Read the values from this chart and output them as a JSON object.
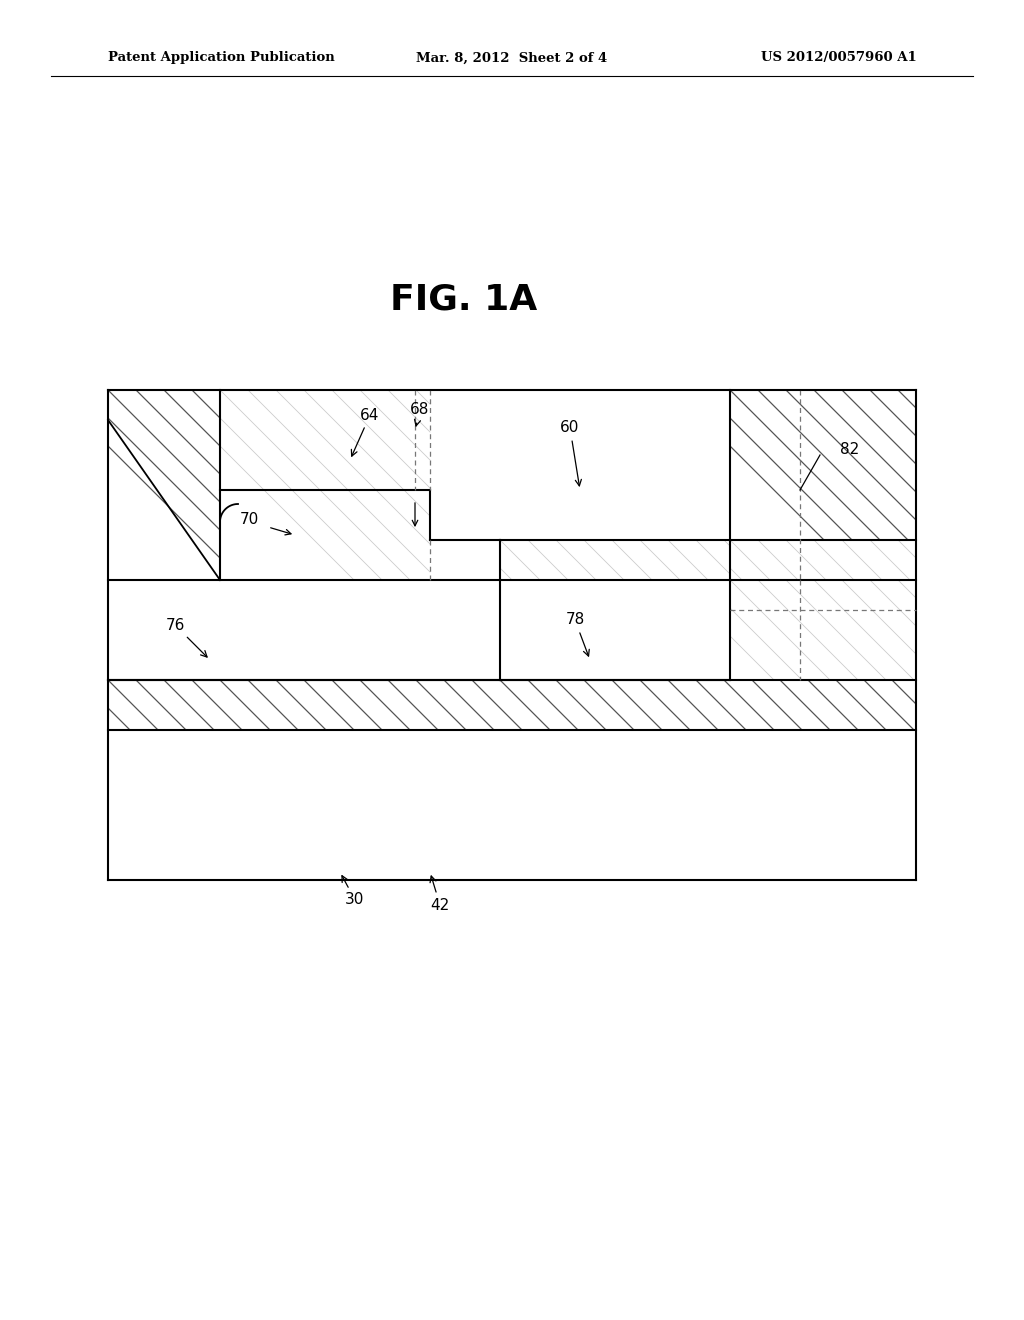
{
  "background_color": "#ffffff",
  "header_left": "Patent Application Publication",
  "header_center": "Mar. 8, 2012  Sheet 2 of 4",
  "header_right": "US 2012/0057960 A1",
  "fig_label": "FIG. 1A",
  "line_color": "#000000",
  "hatch_dark_color": "#000000",
  "hatch_light_color": "#c0c0c0",
  "dash_color": "#666666",
  "label_fontsize": 11,
  "header_fontsize": 9.5
}
